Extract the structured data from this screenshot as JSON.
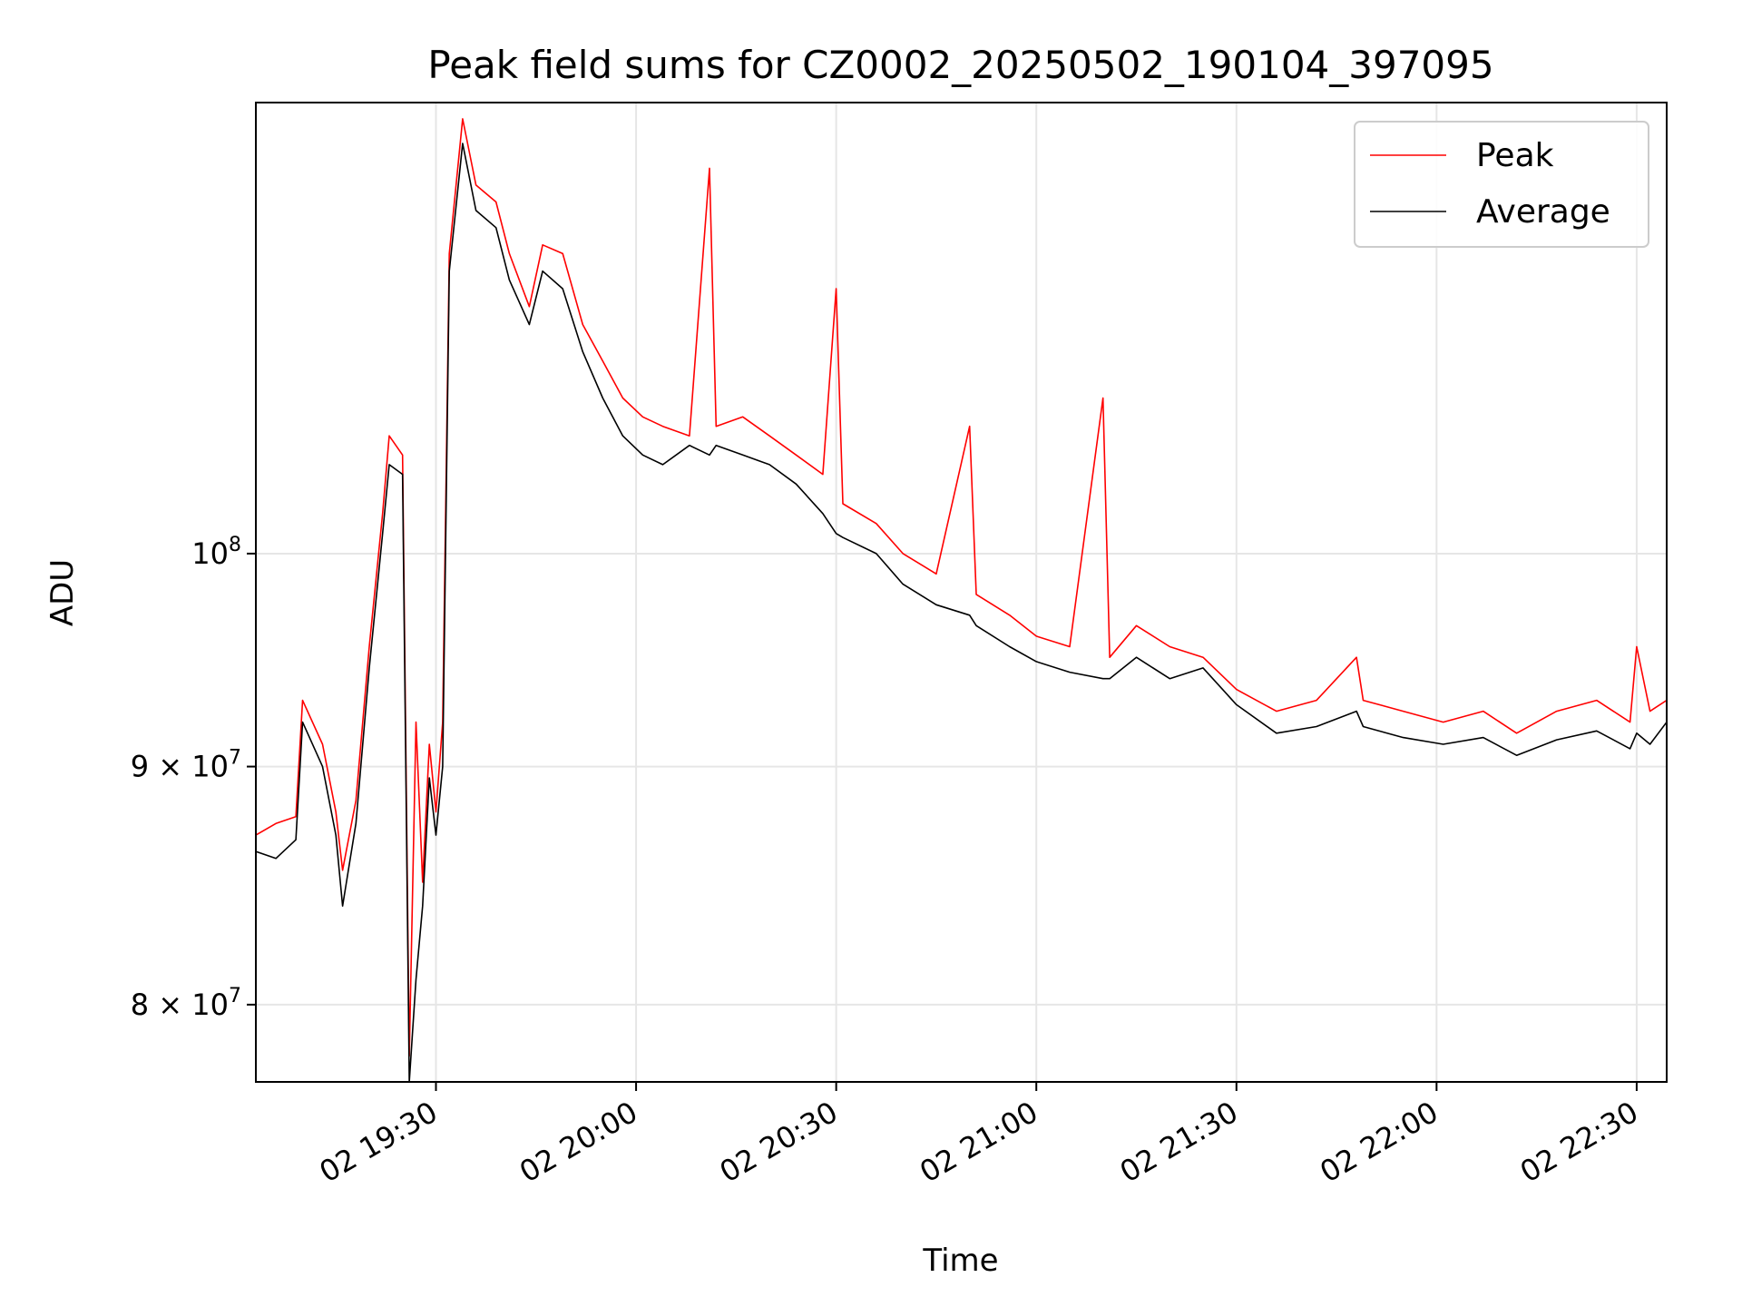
{
  "chart_data": {
    "type": "line",
    "title": "Peak field sums for CZ0002_20250502_190104_397095",
    "xlabel": "Time",
    "ylabel": "ADU",
    "x_range": [
      "2025-05-02T19:03:00",
      "2025-05-02T22:34:30"
    ],
    "x_ticks": [
      {
        "time": "2025-05-02T19:30:00",
        "label": "02 19:30"
      },
      {
        "time": "2025-05-02T20:00:00",
        "label": "02 20:00"
      },
      {
        "time": "2025-05-02T20:30:00",
        "label": "02 20:30"
      },
      {
        "time": "2025-05-02T21:00:00",
        "label": "02 21:00"
      },
      {
        "time": "2025-05-02T21:30:00",
        "label": "02 21:30"
      },
      {
        "time": "2025-05-02T22:00:00",
        "label": "02 22:00"
      },
      {
        "time": "2025-05-02T22:30:00",
        "label": "02 22:30"
      }
    ],
    "y_scale": "log",
    "ylim": [
      77000000,
      125000000
    ],
    "y_ticks": [
      {
        "value": 80000000,
        "base": "8",
        "sep": " × ",
        "exp_base": "10",
        "exp": "7"
      },
      {
        "value": 90000000,
        "base": "9",
        "sep": " × ",
        "exp_base": "10",
        "exp": "7"
      },
      {
        "value": 100000000,
        "base": "",
        "sep": "",
        "exp_base": "10",
        "exp": "8"
      }
    ],
    "grid": true,
    "legend_position": "top-right",
    "series": [
      {
        "name": "Peak",
        "color": "#ff0000",
        "points": [
          [
            "2025-05-02T19:03:00",
            87000000
          ],
          [
            "2025-05-02T19:06:00",
            87500000
          ],
          [
            "2025-05-02T19:09:00",
            87800000
          ],
          [
            "2025-05-02T19:10:00",
            93000000
          ],
          [
            "2025-05-02T19:13:00",
            91000000
          ],
          [
            "2025-05-02T19:15:00",
            88000000
          ],
          [
            "2025-05-02T19:16:00",
            85500000
          ],
          [
            "2025-05-02T19:18:00",
            88500000
          ],
          [
            "2025-05-02T19:20:00",
            95500000
          ],
          [
            "2025-05-02T19:22:00",
            102000000
          ],
          [
            "2025-05-02T19:23:00",
            106000000
          ],
          [
            "2025-05-02T19:25:00",
            105000000
          ],
          [
            "2025-05-02T19:26:00",
            78000000
          ],
          [
            "2025-05-02T19:27:00",
            92000000
          ],
          [
            "2025-05-02T19:28:00",
            85000000
          ],
          [
            "2025-05-02T19:29:00",
            91000000
          ],
          [
            "2025-05-02T19:30:00",
            88000000
          ],
          [
            "2025-05-02T19:31:00",
            92000000
          ],
          [
            "2025-05-02T19:32:00",
            116000000
          ],
          [
            "2025-05-02T19:34:00",
            124000000
          ],
          [
            "2025-05-02T19:36:00",
            120000000
          ],
          [
            "2025-05-02T19:39:00",
            119000000
          ],
          [
            "2025-05-02T19:41:00",
            116000000
          ],
          [
            "2025-05-02T19:44:00",
            113000000
          ],
          [
            "2025-05-02T19:46:00",
            116500000
          ],
          [
            "2025-05-02T19:49:00",
            116000000
          ],
          [
            "2025-05-02T19:52:00",
            112000000
          ],
          [
            "2025-05-02T19:55:00",
            110000000
          ],
          [
            "2025-05-02T19:58:00",
            108000000
          ],
          [
            "2025-05-02T20:01:00",
            107000000
          ],
          [
            "2025-05-02T20:04:00",
            106500000
          ],
          [
            "2025-05-02T20:08:00",
            106000000
          ],
          [
            "2025-05-02T20:11:00",
            121000000
          ],
          [
            "2025-05-02T20:12:00",
            106500000
          ],
          [
            "2025-05-02T20:16:00",
            107000000
          ],
          [
            "2025-05-02T20:20:00",
            106000000
          ],
          [
            "2025-05-02T20:24:00",
            105000000
          ],
          [
            "2025-05-02T20:28:00",
            104000000
          ],
          [
            "2025-05-02T20:30:00",
            114000000
          ],
          [
            "2025-05-02T20:31:00",
            102500000
          ],
          [
            "2025-05-02T20:36:00",
            101500000
          ],
          [
            "2025-05-02T20:40:00",
            100000000
          ],
          [
            "2025-05-02T20:45:00",
            99000000
          ],
          [
            "2025-05-02T20:50:00",
            106500000
          ],
          [
            "2025-05-02T20:51:00",
            98000000
          ],
          [
            "2025-05-02T20:56:00",
            97000000
          ],
          [
            "2025-05-02T21:00:00",
            96000000
          ],
          [
            "2025-05-02T21:05:00",
            95500000
          ],
          [
            "2025-05-02T21:10:00",
            108000000
          ],
          [
            "2025-05-02T21:11:00",
            95000000
          ],
          [
            "2025-05-02T21:15:00",
            96500000
          ],
          [
            "2025-05-02T21:20:00",
            95500000
          ],
          [
            "2025-05-02T21:25:00",
            95000000
          ],
          [
            "2025-05-02T21:30:00",
            93500000
          ],
          [
            "2025-05-02T21:36:00",
            92500000
          ],
          [
            "2025-05-02T21:42:00",
            93000000
          ],
          [
            "2025-05-02T21:48:00",
            95000000
          ],
          [
            "2025-05-02T21:49:00",
            93000000
          ],
          [
            "2025-05-02T21:55:00",
            92500000
          ],
          [
            "2025-05-02T22:01:00",
            92000000
          ],
          [
            "2025-05-02T22:07:00",
            92500000
          ],
          [
            "2025-05-02T22:12:00",
            91500000
          ],
          [
            "2025-05-02T22:18:00",
            92500000
          ],
          [
            "2025-05-02T22:24:00",
            93000000
          ],
          [
            "2025-05-02T22:29:00",
            92000000
          ],
          [
            "2025-05-02T22:30:00",
            95500000
          ],
          [
            "2025-05-02T22:32:00",
            92500000
          ],
          [
            "2025-05-02T22:34:30",
            93000000
          ]
        ]
      },
      {
        "name": "Average",
        "color": "#000000",
        "points": [
          [
            "2025-05-02T19:03:00",
            86300000
          ],
          [
            "2025-05-02T19:06:00",
            86000000
          ],
          [
            "2025-05-02T19:09:00",
            86800000
          ],
          [
            "2025-05-02T19:10:00",
            92000000
          ],
          [
            "2025-05-02T19:13:00",
            90000000
          ],
          [
            "2025-05-02T19:15:00",
            87000000
          ],
          [
            "2025-05-02T19:16:00",
            84000000
          ],
          [
            "2025-05-02T19:18:00",
            87500000
          ],
          [
            "2025-05-02T19:20:00",
            94500000
          ],
          [
            "2025-05-02T19:22:00",
            101000000
          ],
          [
            "2025-05-02T19:23:00",
            104500000
          ],
          [
            "2025-05-02T19:25:00",
            104000000
          ],
          [
            "2025-05-02T19:26:00",
            77000000
          ],
          [
            "2025-05-02T19:27:00",
            81000000
          ],
          [
            "2025-05-02T19:28:00",
            84000000
          ],
          [
            "2025-05-02T19:29:00",
            89500000
          ],
          [
            "2025-05-02T19:30:00",
            87000000
          ],
          [
            "2025-05-02T19:31:00",
            90000000
          ],
          [
            "2025-05-02T19:32:00",
            115000000
          ],
          [
            "2025-05-02T19:34:00",
            122500000
          ],
          [
            "2025-05-02T19:36:00",
            118500000
          ],
          [
            "2025-05-02T19:39:00",
            117500000
          ],
          [
            "2025-05-02T19:41:00",
            114500000
          ],
          [
            "2025-05-02T19:44:00",
            112000000
          ],
          [
            "2025-05-02T19:46:00",
            115000000
          ],
          [
            "2025-05-02T19:49:00",
            114000000
          ],
          [
            "2025-05-02T19:52:00",
            110500000
          ],
          [
            "2025-05-02T19:55:00",
            108000000
          ],
          [
            "2025-05-02T19:58:00",
            106000000
          ],
          [
            "2025-05-02T20:01:00",
            105000000
          ],
          [
            "2025-05-02T20:04:00",
            104500000
          ],
          [
            "2025-05-02T20:08:00",
            105500000
          ],
          [
            "2025-05-02T20:11:00",
            105000000
          ],
          [
            "2025-05-02T20:12:00",
            105500000
          ],
          [
            "2025-05-02T20:16:00",
            105000000
          ],
          [
            "2025-05-02T20:20:00",
            104500000
          ],
          [
            "2025-05-02T20:24:00",
            103500000
          ],
          [
            "2025-05-02T20:28:00",
            102000000
          ],
          [
            "2025-05-02T20:30:00",
            101000000
          ],
          [
            "2025-05-02T20:31:00",
            100800000
          ],
          [
            "2025-05-02T20:36:00",
            100000000
          ],
          [
            "2025-05-02T20:40:00",
            98500000
          ],
          [
            "2025-05-02T20:45:00",
            97500000
          ],
          [
            "2025-05-02T20:50:00",
            97000000
          ],
          [
            "2025-05-02T20:51:00",
            96500000
          ],
          [
            "2025-05-02T20:56:00",
            95500000
          ],
          [
            "2025-05-02T21:00:00",
            94800000
          ],
          [
            "2025-05-02T21:05:00",
            94300000
          ],
          [
            "2025-05-02T21:10:00",
            94000000
          ],
          [
            "2025-05-02T21:11:00",
            94000000
          ],
          [
            "2025-05-02T21:15:00",
            95000000
          ],
          [
            "2025-05-02T21:20:00",
            94000000
          ],
          [
            "2025-05-02T21:25:00",
            94500000
          ],
          [
            "2025-05-02T21:30:00",
            92800000
          ],
          [
            "2025-05-02T21:36:00",
            91500000
          ],
          [
            "2025-05-02T21:42:00",
            91800000
          ],
          [
            "2025-05-02T21:48:00",
            92500000
          ],
          [
            "2025-05-02T21:49:00",
            91800000
          ],
          [
            "2025-05-02T21:55:00",
            91300000
          ],
          [
            "2025-05-02T22:01:00",
            91000000
          ],
          [
            "2025-05-02T22:07:00",
            91300000
          ],
          [
            "2025-05-02T22:12:00",
            90500000
          ],
          [
            "2025-05-02T22:18:00",
            91200000
          ],
          [
            "2025-05-02T22:24:00",
            91600000
          ],
          [
            "2025-05-02T22:29:00",
            90800000
          ],
          [
            "2025-05-02T22:30:00",
            91500000
          ],
          [
            "2025-05-02T22:32:00",
            91000000
          ],
          [
            "2025-05-02T22:34:30",
            92000000
          ]
        ]
      }
    ]
  }
}
